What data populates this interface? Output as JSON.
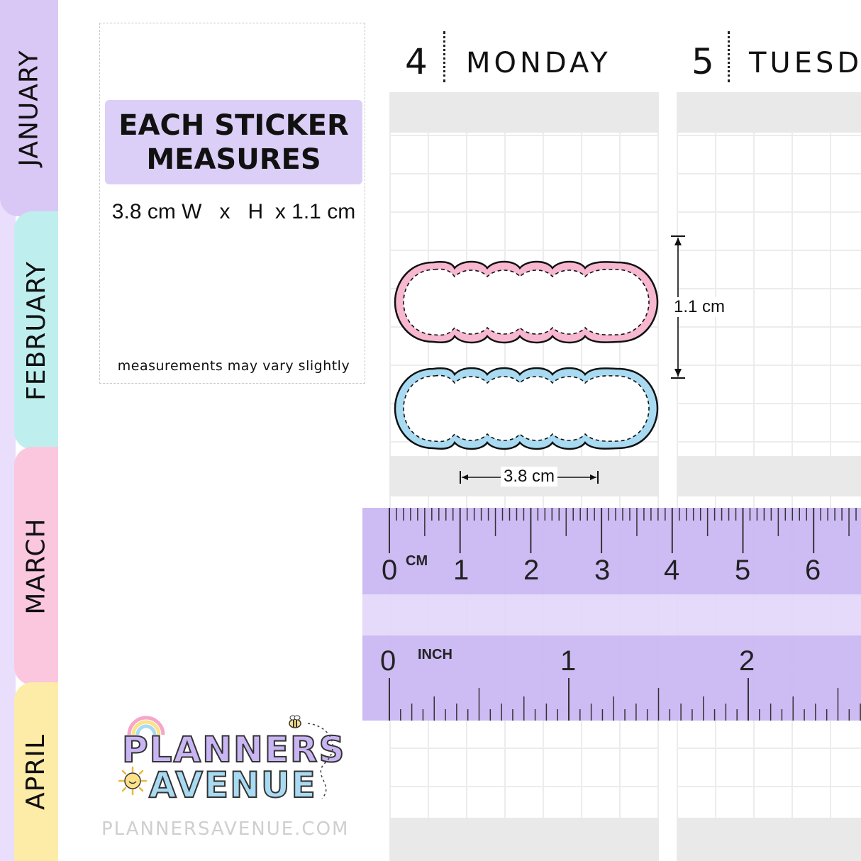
{
  "tabs": [
    {
      "label": "JANUARY",
      "color": "#d9c8f5"
    },
    {
      "label": "FEBRUARY",
      "color": "#bfeeee"
    },
    {
      "label": "MARCH",
      "color": "#fbc7df"
    },
    {
      "label": "APRIL",
      "color": "#fdeca8"
    }
  ],
  "sidebar_color": "#e9defb",
  "info": {
    "heading_line1": "EACH STICKER",
    "heading_line2": "MEASURES",
    "dimensions": "3.8 cm W   x   H  x 1.1 cm",
    "note": "measurements may vary slightly"
  },
  "days": [
    {
      "number": "4",
      "name": "MONDAY"
    },
    {
      "number": "5",
      "name": "TUESDAY"
    }
  ],
  "measurements": {
    "height_label": "1.1 cm",
    "width_label": "3.8 cm"
  },
  "stickers": [
    {
      "name": "pink",
      "color": "#f6b7cf"
    },
    {
      "name": "blue",
      "color": "#a8dbf2"
    }
  ],
  "watermark": "PLANNERS AVENUE",
  "ruler": {
    "color": "#c9b5f3",
    "cm_unit": "CM",
    "inch_unit": "INCH",
    "cm_numbers": [
      "0",
      "1",
      "2",
      "3",
      "4",
      "5",
      "6"
    ],
    "inch_numbers": [
      "0",
      "1",
      "2"
    ]
  },
  "logo": {
    "line1": "PLANNERS",
    "line2": "AVENUE"
  },
  "footer": {
    "url": "PLANNERSAVENUE.COM"
  }
}
